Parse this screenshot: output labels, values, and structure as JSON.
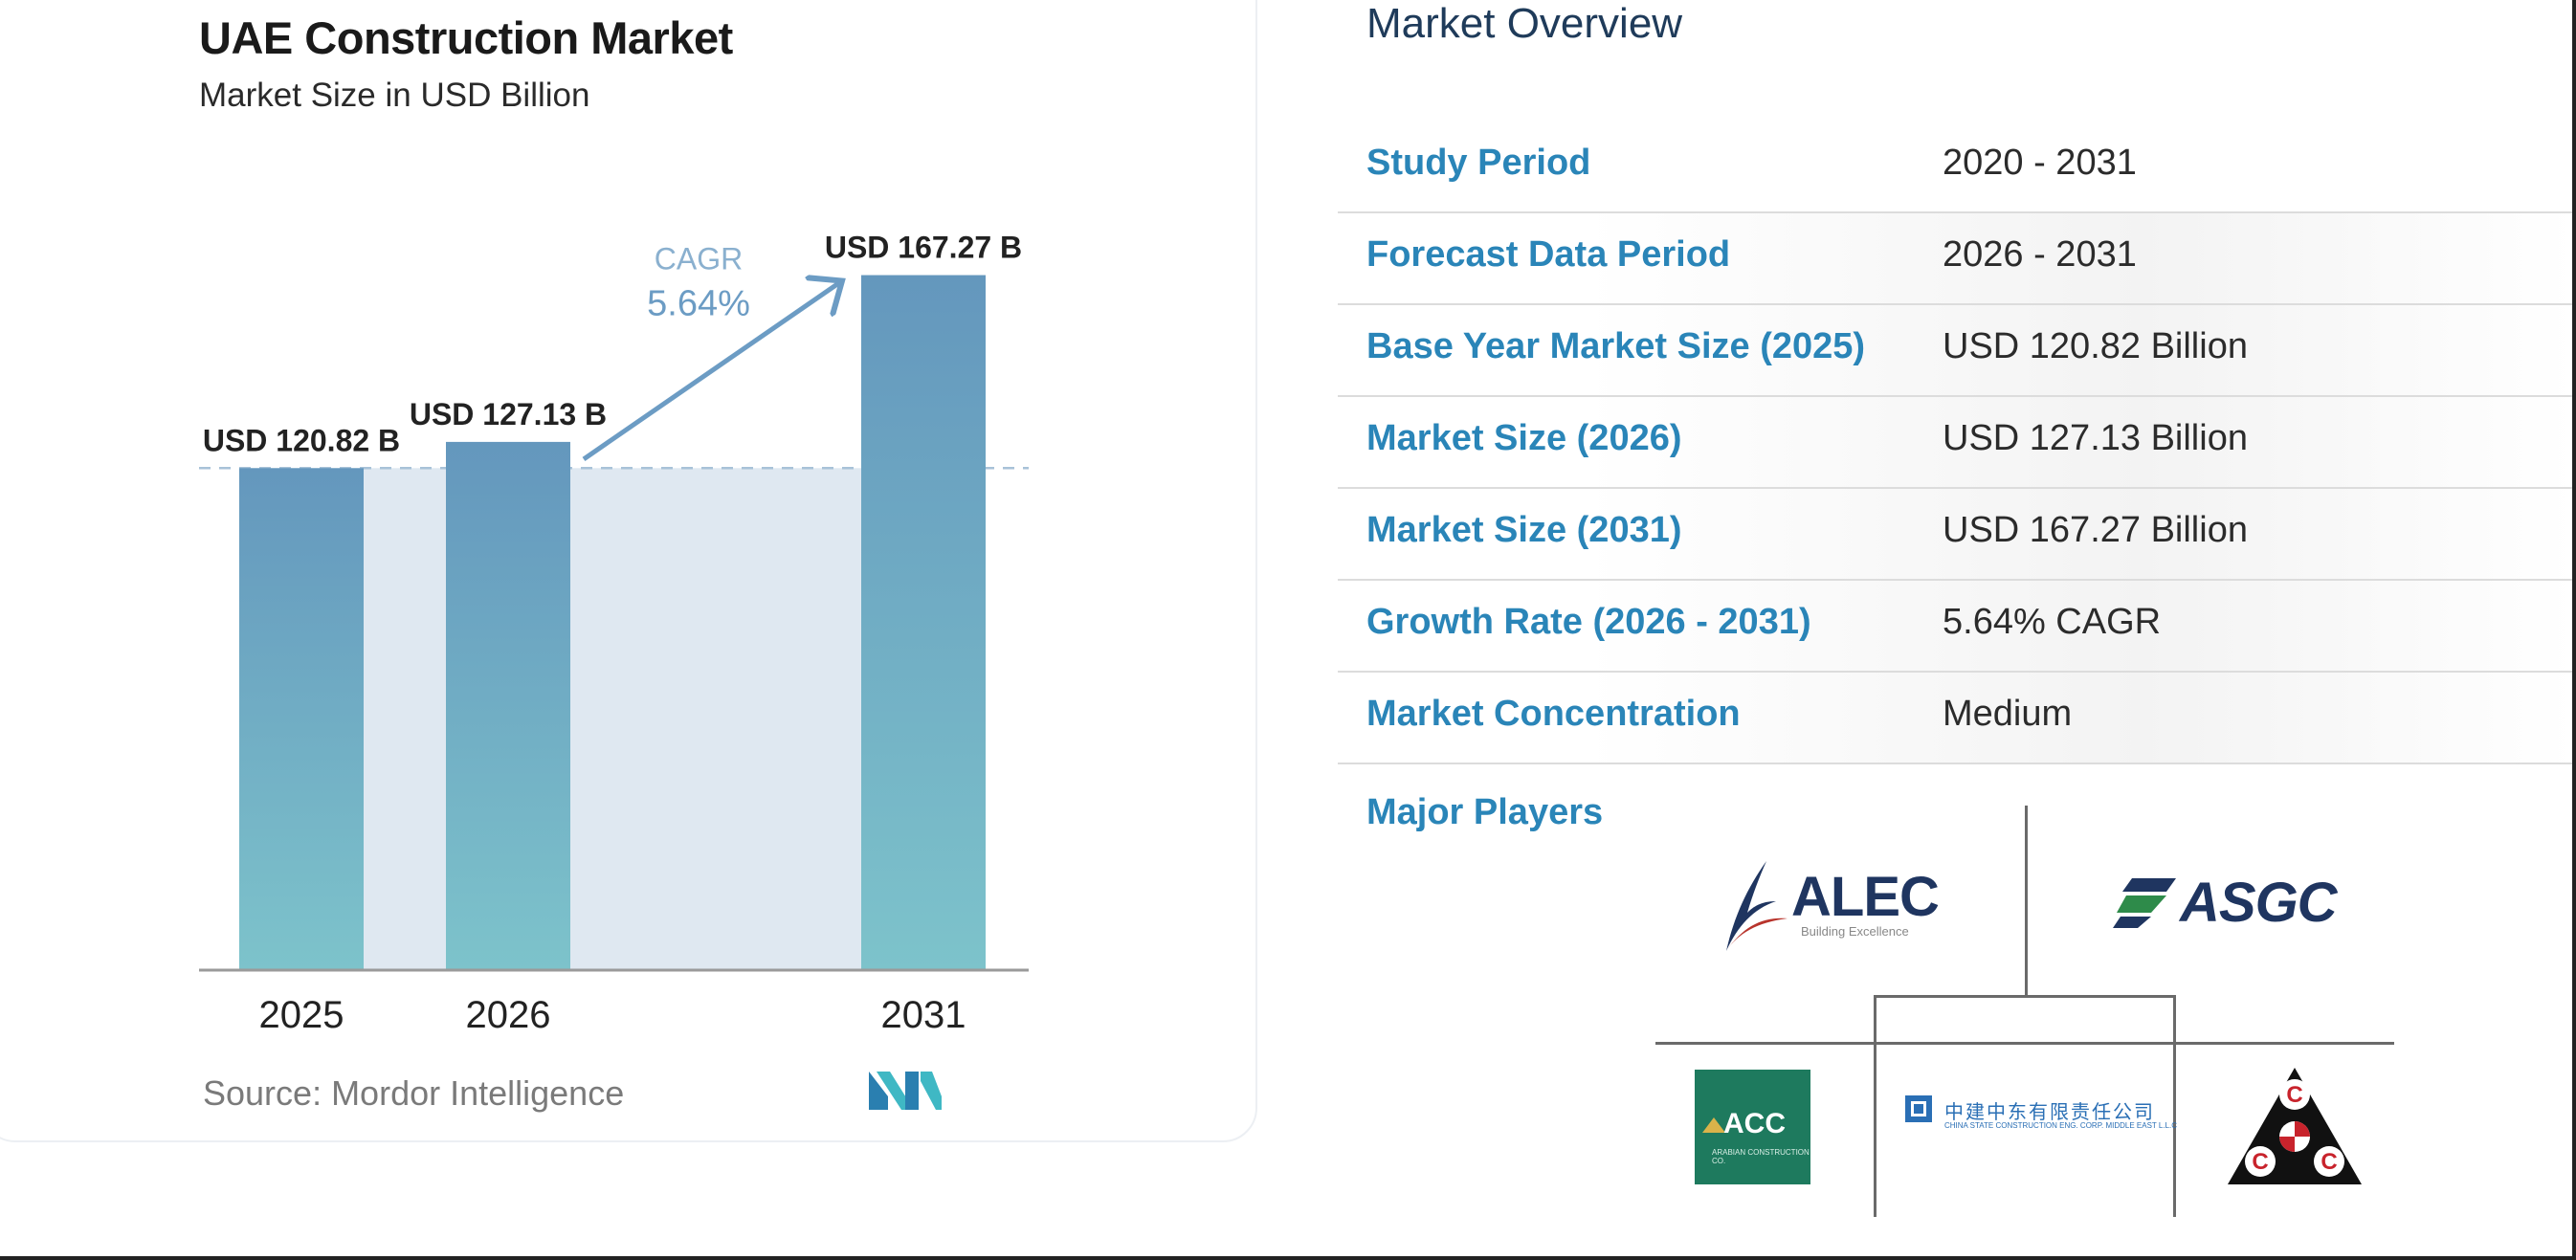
{
  "chart_data": {
    "type": "bar",
    "title": "UAE Construction Market",
    "subtitle": "Market Size in USD Billion",
    "categories": [
      "2025",
      "2026",
      "2031"
    ],
    "values": [
      120.82,
      127.13,
      167.27
    ],
    "value_labels": [
      "USD 120.82 B",
      "USD 127.13 B",
      "USD 167.27 B"
    ],
    "cagr_label": "CAGR",
    "cagr_value": "5.64%",
    "source": "Source: Mordor Intelligence",
    "ylim": [
      0,
      175
    ],
    "grid": false,
    "bar_color_top": "#6497bd",
    "bar_color_bottom": "#7dc3cb",
    "area_color": "#dfe8f1",
    "arrow_color": "#6c9cc4"
  },
  "overview": {
    "title": "Market Overview",
    "rows": [
      {
        "label": "Study Period",
        "value": "2020 - 2031"
      },
      {
        "label": "Forecast Data Period",
        "value": "2026 - 2031"
      },
      {
        "label": "Base Year Market Size (2025)",
        "value": "USD 120.82 Billion"
      },
      {
        "label": "Market Size (2026)",
        "value": "USD 127.13 Billion"
      },
      {
        "label": "Market Size (2031)",
        "value": "USD 167.27 Billion"
      },
      {
        "label": "Growth Rate (2026 - 2031)",
        "value": "5.64% CAGR"
      },
      {
        "label": "Market Concentration",
        "value": "Medium"
      }
    ],
    "major_players_label": "Major Players",
    "players": {
      "alec": "ALEC",
      "alec_tagline": "Building Excellence",
      "asgc": "ASGC",
      "acc": "ACC",
      "acc_tagline": "ARABIAN CONSTRUCTION CO.",
      "cscec": "中建中东有限责任公司",
      "cscec_tagline": "CHINA STATE CONSTRUCTION ENG. CORP. MIDDLE EAST L.L.C",
      "ccc_letters": [
        "C",
        "C",
        "C"
      ]
    }
  }
}
